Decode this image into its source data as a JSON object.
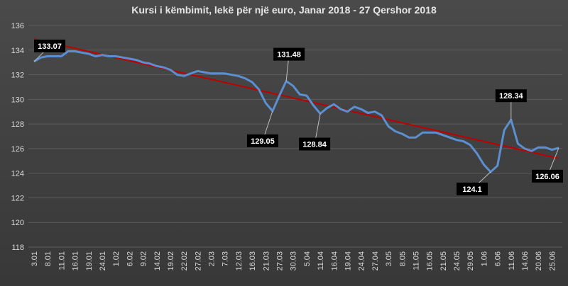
{
  "chart_data": {
    "type": "line",
    "title": "Kursi i këmbimit, lekë për një euro, Janar 2018 - 27 Qershor 2018",
    "categories": [
      "3.01",
      null,
      "8.01",
      null,
      "11.01",
      null,
      "16.01",
      null,
      "19.01",
      null,
      "24.01",
      null,
      "1.02",
      null,
      "6.02",
      null,
      "9.02",
      null,
      "14.02",
      null,
      "19.02",
      null,
      "22.02",
      null,
      "27.02",
      null,
      "2.03",
      null,
      "7.03",
      null,
      "12.03",
      null,
      "16.03",
      null,
      "21.03",
      null,
      "27.03",
      null,
      "30.03",
      null,
      "5.04",
      null,
      "11.04",
      null,
      "16.04",
      null,
      "19.04",
      null,
      "24.04",
      null,
      "27.04",
      null,
      "3.05",
      null,
      "8.05",
      null,
      "11.05",
      null,
      "16.05",
      null,
      "21.05",
      null,
      "24.05",
      null,
      "29.05",
      null,
      "1.06",
      null,
      "6.06",
      null,
      "11.06",
      null,
      "14.06",
      null,
      "20.06",
      null,
      "25.06",
      null
    ],
    "series": [
      {
        "color": "#5b8fd0",
        "values": [
          133.07,
          133.4,
          133.5,
          133.5,
          133.5,
          133.9,
          133.9,
          133.8,
          133.7,
          133.5,
          133.6,
          133.5,
          133.5,
          133.4,
          133.3,
          133.2,
          133.0,
          132.9,
          132.7,
          132.6,
          132.4,
          132.0,
          131.9,
          132.1,
          132.3,
          132.2,
          132.1,
          132.1,
          132.1,
          132.0,
          131.9,
          131.7,
          131.4,
          130.8,
          129.7,
          129.05,
          130.3,
          131.48,
          131.1,
          130.4,
          130.3,
          129.5,
          128.84,
          129.3,
          129.6,
          129.2,
          129.0,
          129.4,
          129.2,
          128.9,
          129.0,
          128.7,
          127.8,
          127.4,
          127.2,
          126.9,
          126.9,
          127.3,
          127.3,
          127.3,
          127.1,
          126.9,
          126.7,
          126.6,
          126.3,
          125.6,
          124.7,
          124.1,
          124.6,
          127.5,
          128.34,
          126.4,
          126.0,
          125.8,
          126.1,
          126.1,
          125.9,
          126.06
        ]
      }
    ],
    "labeled_points": [
      0,
      37,
      35,
      42,
      67,
      70,
      77
    ],
    "trendline": {
      "color": "#c00000",
      "values": [
        134.9,
        125.2
      ]
    },
    "ylim": [
      118,
      136
    ],
    "yticks": [
      118,
      120,
      122,
      124,
      126,
      128,
      130,
      132,
      134,
      136
    ],
    "grid": true
  }
}
